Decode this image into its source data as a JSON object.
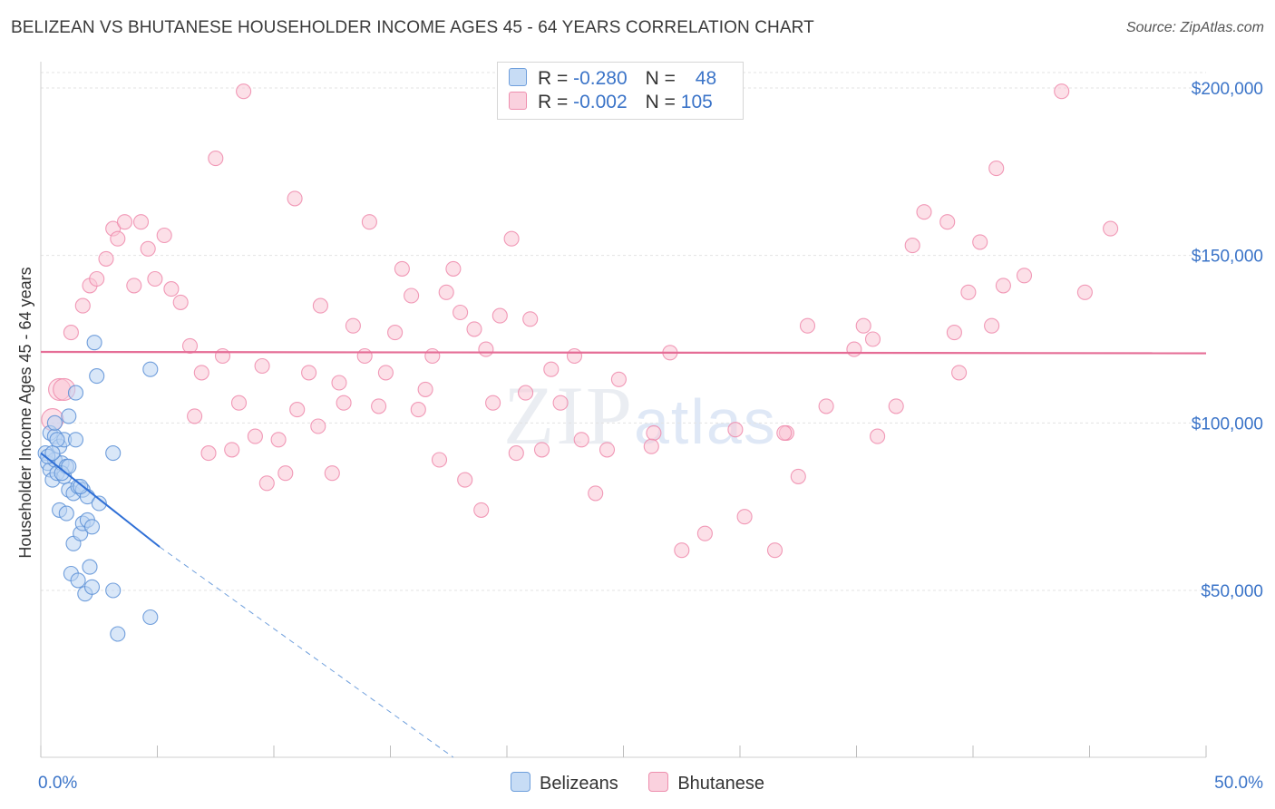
{
  "title": "BELIZEAN VS BHUTANESE HOUSEHOLDER INCOME AGES 45 - 64 YEARS CORRELATION CHART",
  "source": "Source: ZipAtlas.com",
  "watermark": {
    "zip": "ZIP",
    "atlas": "atlas"
  },
  "legend": {
    "rows": [
      {
        "r_label": "R = ",
        "r_value": "-0.280",
        "n_label": "N = ",
        "n_value": "48",
        "color": "#9ec3f0"
      },
      {
        "r_label": "R = ",
        "r_value": "-0.002",
        "n_label": "N = ",
        "n_value": "105",
        "color": "#f6b6c9"
      }
    ]
  },
  "bottom_legend": [
    "Belizeans",
    "Bhutanese"
  ],
  "chart_data": {
    "type": "scatter",
    "ylabel": "Householder Income Ages 45 - 64 years",
    "xlim": [
      0,
      50
    ],
    "ylim": [
      0,
      210000
    ],
    "x_tick_labels": [
      "0.0%",
      "50.0%"
    ],
    "y_ticks": [
      {
        "value": 50000,
        "label": "$50,000"
      },
      {
        "value": 100000,
        "label": "$100,000"
      },
      {
        "value": 150000,
        "label": "$150,000"
      },
      {
        "value": 200000,
        "label": "$200,000"
      }
    ],
    "grid": true,
    "series": [
      {
        "name": "Belizeans",
        "color": "#5b8fd6",
        "fill": "#b9d3f3",
        "trend": {
          "x0": 0,
          "y0": 91000,
          "x1": 5.1,
          "y1": 63000,
          "dash_x_end": 17.7,
          "dash_y_end": 0
        },
        "points": [
          [
            0.2,
            91000
          ],
          [
            0.3,
            88000
          ],
          [
            0.4,
            97000
          ],
          [
            0.4,
            86000
          ],
          [
            0.5,
            83000
          ],
          [
            0.6,
            96000
          ],
          [
            0.6,
            89000
          ],
          [
            0.7,
            85000
          ],
          [
            0.8,
            93000
          ],
          [
            0.8,
            74000
          ],
          [
            0.9,
            88000
          ],
          [
            1.0,
            95000
          ],
          [
            1.0,
            84000
          ],
          [
            1.1,
            87000
          ],
          [
            1.1,
            73000
          ],
          [
            1.2,
            102000
          ],
          [
            1.2,
            80000
          ],
          [
            1.3,
            55000
          ],
          [
            1.4,
            79000
          ],
          [
            1.4,
            64000
          ],
          [
            1.5,
            109000
          ],
          [
            1.5,
            95000
          ],
          [
            1.6,
            53000
          ],
          [
            1.6,
            81000
          ],
          [
            1.7,
            67000
          ],
          [
            1.8,
            70000
          ],
          [
            1.8,
            80000
          ],
          [
            1.9,
            49000
          ],
          [
            2.0,
            78000
          ],
          [
            2.0,
            71000
          ],
          [
            2.1,
            57000
          ],
          [
            2.2,
            69000
          ],
          [
            2.2,
            51000
          ],
          [
            2.3,
            124000
          ],
          [
            2.4,
            114000
          ],
          [
            2.5,
            76000
          ],
          [
            3.1,
            91000
          ],
          [
            3.1,
            50000
          ],
          [
            3.3,
            37000
          ],
          [
            4.7,
            42000
          ],
          [
            4.7,
            116000
          ],
          [
            0.3,
            90000
          ],
          [
            0.5,
            91000
          ],
          [
            0.7,
            95000
          ],
          [
            0.9,
            85000
          ],
          [
            1.2,
            87000
          ],
          [
            1.7,
            81000
          ],
          [
            0.6,
            100000
          ]
        ]
      },
      {
        "name": "Bhutanese",
        "color": "#ef8aab",
        "fill": "#f9c7d6",
        "trend": {
          "x0": 0,
          "y0": 121200,
          "x1": 50,
          "y1": 120800
        },
        "points": [
          [
            0.5,
            101000
          ],
          [
            0.8,
            110000
          ],
          [
            1.0,
            110000
          ],
          [
            1.3,
            127000
          ],
          [
            1.8,
            135000
          ],
          [
            2.1,
            141000
          ],
          [
            2.4,
            143000
          ],
          [
            2.8,
            149000
          ],
          [
            3.1,
            158000
          ],
          [
            3.3,
            155000
          ],
          [
            3.6,
            160000
          ],
          [
            4.0,
            141000
          ],
          [
            4.3,
            160000
          ],
          [
            4.6,
            152000
          ],
          [
            4.9,
            143000
          ],
          [
            5.3,
            156000
          ],
          [
            5.6,
            140000
          ],
          [
            6.0,
            136000
          ],
          [
            6.4,
            123000
          ],
          [
            6.6,
            102000
          ],
          [
            6.9,
            115000
          ],
          [
            7.2,
            91000
          ],
          [
            7.5,
            179000
          ],
          [
            7.8,
            120000
          ],
          [
            8.2,
            92000
          ],
          [
            8.5,
            106000
          ],
          [
            8.7,
            199000
          ],
          [
            9.2,
            96000
          ],
          [
            9.5,
            117000
          ],
          [
            9.7,
            82000
          ],
          [
            10.2,
            95000
          ],
          [
            10.5,
            85000
          ],
          [
            10.9,
            167000
          ],
          [
            11.0,
            104000
          ],
          [
            11.5,
            115000
          ],
          [
            11.9,
            99000
          ],
          [
            12.0,
            135000
          ],
          [
            12.5,
            85000
          ],
          [
            12.8,
            112000
          ],
          [
            13.0,
            106000
          ],
          [
            13.4,
            129000
          ],
          [
            13.9,
            120000
          ],
          [
            14.1,
            160000
          ],
          [
            14.5,
            105000
          ],
          [
            14.8,
            115000
          ],
          [
            15.2,
            127000
          ],
          [
            15.5,
            146000
          ],
          [
            15.9,
            138000
          ],
          [
            16.2,
            104000
          ],
          [
            16.5,
            110000
          ],
          [
            16.8,
            120000
          ],
          [
            17.1,
            89000
          ],
          [
            17.4,
            139000
          ],
          [
            17.7,
            146000
          ],
          [
            18.0,
            133000
          ],
          [
            18.2,
            83000
          ],
          [
            18.6,
            128000
          ],
          [
            18.9,
            74000
          ],
          [
            19.1,
            122000
          ],
          [
            19.4,
            106000
          ],
          [
            19.7,
            132000
          ],
          [
            20.2,
            155000
          ],
          [
            20.4,
            91000
          ],
          [
            20.8,
            109000
          ],
          [
            21.0,
            131000
          ],
          [
            21.5,
            92000
          ],
          [
            21.9,
            116000
          ],
          [
            22.3,
            106000
          ],
          [
            22.9,
            120000
          ],
          [
            23.2,
            95000
          ],
          [
            23.8,
            79000
          ],
          [
            24.3,
            92000
          ],
          [
            24.8,
            113000
          ],
          [
            26.3,
            97000
          ],
          [
            26.2,
            93000
          ],
          [
            27.0,
            121000
          ],
          [
            27.5,
            62000
          ],
          [
            28.5,
            67000
          ],
          [
            29.8,
            98000
          ],
          [
            30.2,
            72000
          ],
          [
            31.5,
            62000
          ],
          [
            32.0,
            97000
          ],
          [
            32.5,
            84000
          ],
          [
            32.9,
            129000
          ],
          [
            33.7,
            105000
          ],
          [
            34.9,
            122000
          ],
          [
            35.3,
            129000
          ],
          [
            35.7,
            125000
          ],
          [
            35.9,
            96000
          ],
          [
            36.7,
            105000
          ],
          [
            37.4,
            153000
          ],
          [
            37.9,
            163000
          ],
          [
            38.9,
            160000
          ],
          [
            39.2,
            127000
          ],
          [
            39.4,
            115000
          ],
          [
            39.8,
            139000
          ],
          [
            40.3,
            154000
          ],
          [
            40.8,
            129000
          ],
          [
            41.0,
            176000
          ],
          [
            41.3,
            141000
          ],
          [
            42.2,
            144000
          ],
          [
            43.8,
            199000
          ],
          [
            44.8,
            139000
          ],
          [
            45.9,
            158000
          ],
          [
            31.9,
            97000
          ]
        ]
      }
    ]
  }
}
